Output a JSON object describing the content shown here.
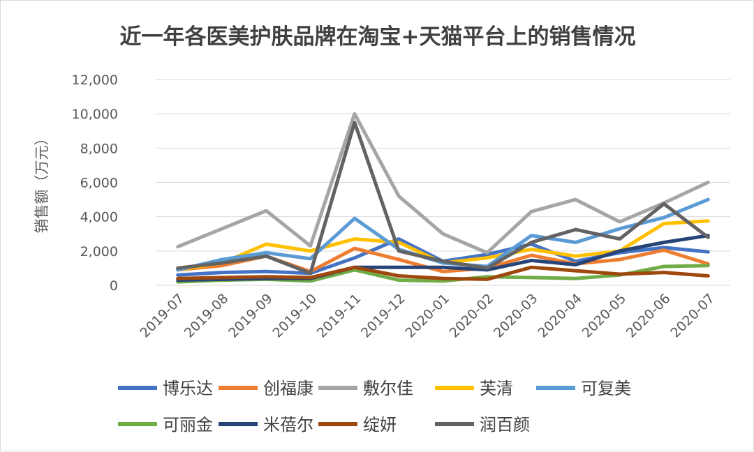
{
  "chart_data": {
    "type": "line",
    "title": "近一年各医美护肤品牌在淘宝+天猫平台上的销售情况",
    "xlabel": "",
    "ylabel": "销售额（万元）",
    "ylim": [
      0,
      12000
    ],
    "yticks": [
      0,
      2000,
      4000,
      6000,
      8000,
      10000,
      12000
    ],
    "ytick_labels": [
      "0",
      "2,000",
      "4,000",
      "6,000",
      "8,000",
      "10,000",
      "12,000"
    ],
    "grid": true,
    "legend_position": "bottom",
    "categories": [
      "2019-07",
      "2019-08",
      "2019-09",
      "2019-10",
      "2019-11",
      "2019-12",
      "2020-01",
      "2020-02",
      "2020-03",
      "2020-04",
      "2020-05",
      "2020-06",
      "2020-07"
    ],
    "series": [
      {
        "name": "博乐达",
        "color": "#4472c4",
        "values": [
          600,
          750,
          800,
          700,
          1600,
          2700,
          1400,
          1800,
          2400,
          1400,
          1900,
          2200,
          1950
        ]
      },
      {
        "name": "创福康",
        "color": "#ed7d31",
        "values": [
          900,
          1150,
          1700,
          800,
          2150,
          1500,
          800,
          1000,
          1750,
          1250,
          1500,
          2050,
          1250
        ]
      },
      {
        "name": "敷尔佳",
        "color": "#a5a5a5",
        "values": [
          2250,
          3300,
          4350,
          2300,
          10000,
          5200,
          3000,
          1900,
          4300,
          5000,
          3700,
          4800,
          6000
        ]
      },
      {
        "name": "芙清",
        "color": "#ffc000",
        "values": [
          900,
          1300,
          2400,
          2000,
          2700,
          2500,
          1300,
          1600,
          2100,
          1700,
          2000,
          3600,
          3750
        ]
      },
      {
        "name": "可复美",
        "color": "#5b9bd5",
        "values": [
          900,
          1500,
          1900,
          1550,
          3900,
          2100,
          1300,
          1100,
          2900,
          2500,
          3300,
          3950,
          5000
        ]
      },
      {
        "name": "可丽金",
        "color": "#70ad47",
        "values": [
          200,
          300,
          350,
          250,
          900,
          300,
          250,
          500,
          450,
          400,
          600,
          1100,
          1150
        ]
      },
      {
        "name": "米蓓尔",
        "color": "#264478",
        "values": [
          300,
          350,
          400,
          400,
          1050,
          1050,
          1050,
          900,
          1450,
          1200,
          2000,
          2500,
          2900
        ]
      },
      {
        "name": "绽妍",
        "color": "#9e480e",
        "values": [
          400,
          450,
          500,
          450,
          1050,
          550,
          400,
          350,
          1050,
          850,
          650,
          750,
          550
        ]
      },
      {
        "name": "润百颜",
        "color": "#636363",
        "values": [
          1000,
          1300,
          1700,
          700,
          9500,
          2000,
          1400,
          1000,
          2500,
          3250,
          2700,
          4750,
          2800
        ]
      }
    ]
  }
}
